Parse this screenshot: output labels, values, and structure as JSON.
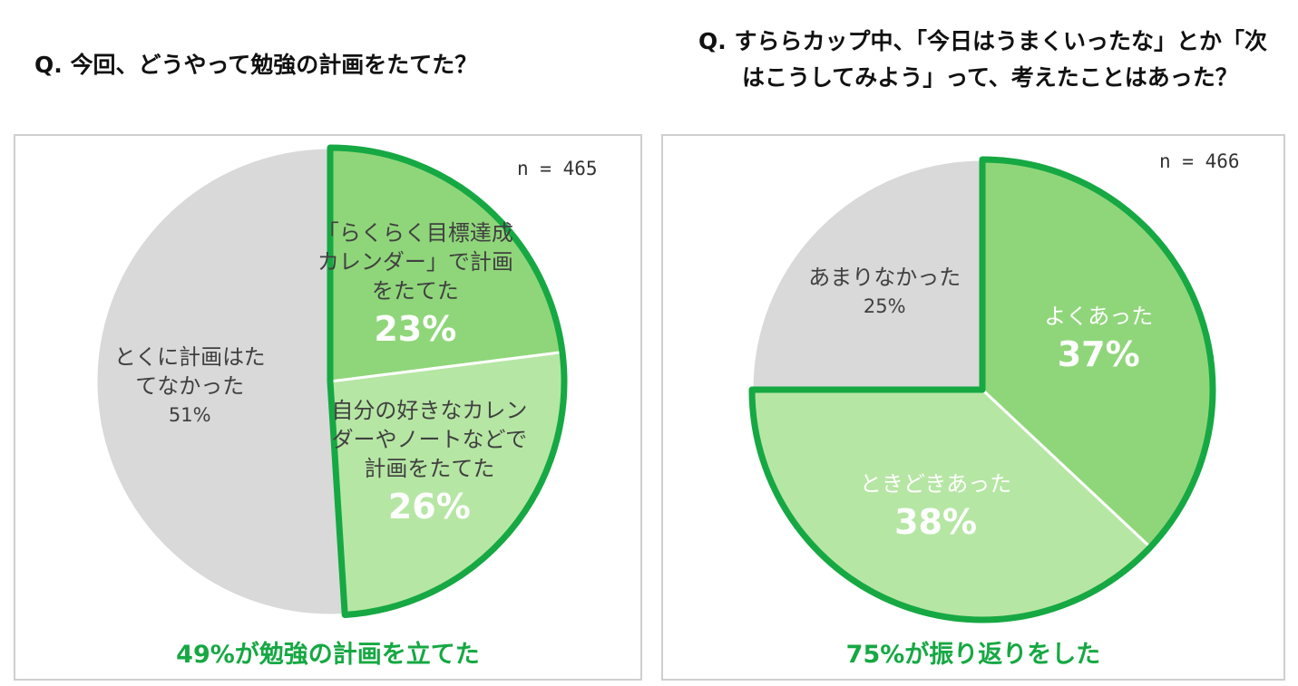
{
  "chart_data": [
    {
      "type": "pie",
      "title": "Q. 今回、どうやって勉強の計画をたてた？",
      "note": "n = 465",
      "categories": [
        "「らくらく目標達成カレンダー」で計画をたてた",
        "自分の好きなカレンダーやノートなどで計画をたてた",
        "とくに計画はたてなかった"
      ],
      "values": [
        23,
        26,
        51
      ],
      "value_labels": [
        "23%",
        "26%",
        "51%"
      ],
      "colors": [
        "#8fd67a",
        "#b6e6a4",
        "#d9d9d9"
      ],
      "text_colors": [
        "#404040",
        "#404040",
        "#404040"
      ],
      "highlight": [
        0,
        1
      ],
      "highlight_color": "#16a843",
      "annotation": "49%が勉強の計画を立てた"
    },
    {
      "type": "pie",
      "title": "Q. すららカップ中、「今日はうまくいったな」とか「次はこうしてみよう」って、考えたことはあった？",
      "note": "n = 466",
      "categories": [
        "よくあった",
        "ときどきあった",
        "あまりなかった"
      ],
      "values": [
        37,
        38,
        25
      ],
      "value_labels": [
        "37%",
        "38%",
        "25%"
      ],
      "colors": [
        "#8fd67a",
        "#b6e6a4",
        "#d9d9d9"
      ],
      "text_colors": [
        "#ffffff",
        "#ffffff",
        "#404040"
      ],
      "highlight": [
        0,
        1
      ],
      "highlight_color": "#16a843",
      "annotation": "75%が振り返りをした"
    }
  ]
}
